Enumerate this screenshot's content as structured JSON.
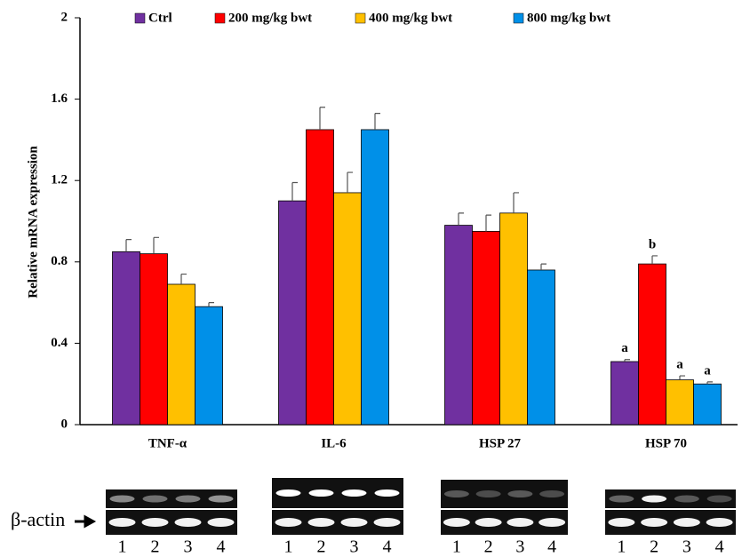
{
  "chart_data": {
    "type": "bar",
    "y_label": "Relative mRNA expression",
    "categories": [
      "TNF-α",
      "IL-6",
      "HSP 27",
      "HSP 70"
    ],
    "series": [
      {
        "name": "Ctrl",
        "color": "#7030a0",
        "values": [
          0.85,
          1.1,
          0.98,
          0.31
        ],
        "errors": [
          0.06,
          0.09,
          0.06,
          0.01
        ],
        "annotations": [
          null,
          null,
          null,
          "a"
        ]
      },
      {
        "name": "200 mg/kg bwt",
        "color": "#ff0000",
        "values": [
          0.84,
          1.45,
          0.95,
          0.79
        ],
        "errors": [
          0.08,
          0.11,
          0.08,
          0.04
        ],
        "annotations": [
          null,
          null,
          null,
          "b"
        ]
      },
      {
        "name": "400 mg/kg bwt",
        "color": "#ffc000",
        "values": [
          0.69,
          1.14,
          1.04,
          0.22
        ],
        "errors": [
          0.05,
          0.1,
          0.1,
          0.02
        ],
        "annotations": [
          null,
          null,
          null,
          "a"
        ]
      },
      {
        "name": "800 mg/kg bwt",
        "color": "#0090e8",
        "values": [
          0.58,
          1.45,
          0.76,
          0.2
        ],
        "errors": [
          0.02,
          0.08,
          0.03,
          0.01
        ],
        "annotations": [
          null,
          null,
          null,
          "a"
        ]
      }
    ],
    "ylim": [
      0,
      2
    ],
    "yticks": [
      0,
      0.4,
      0.8,
      1.2,
      1.6,
      2
    ],
    "grid": false
  },
  "gel": {
    "label": "β-actin",
    "lanes": [
      "1",
      "2",
      "3",
      "4"
    ]
  }
}
